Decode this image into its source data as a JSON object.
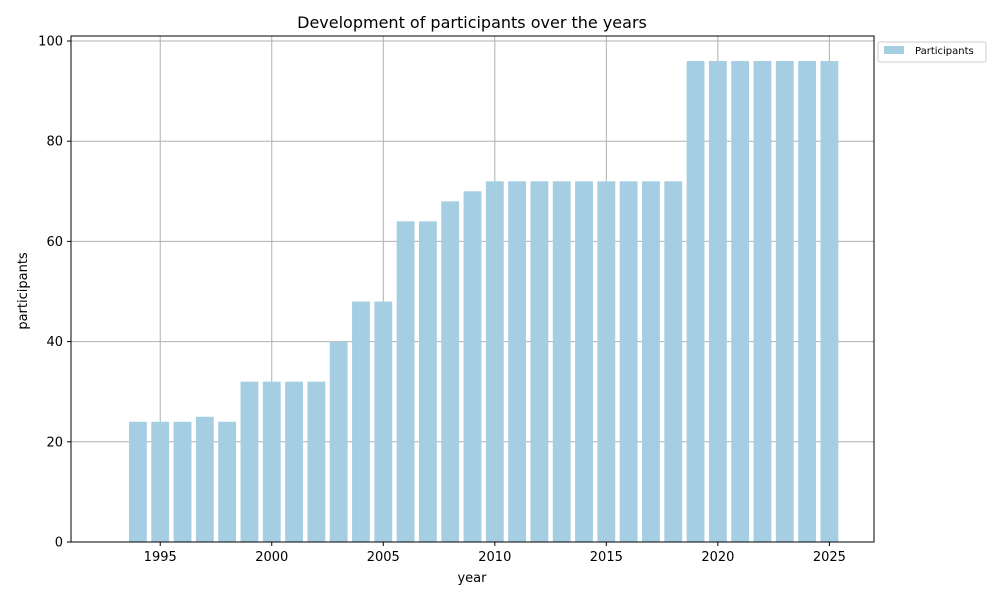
{
  "chart_data": {
    "type": "bar",
    "title": "Development of participants over the years",
    "xlabel": "year",
    "ylabel": "participants",
    "x": [
      1994,
      1995,
      1996,
      1997,
      1998,
      1999,
      2000,
      2001,
      2002,
      2003,
      2004,
      2005,
      2006,
      2007,
      2008,
      2009,
      2010,
      2011,
      2012,
      2013,
      2014,
      2015,
      2016,
      2017,
      2018,
      2019,
      2020,
      2021,
      2022,
      2023,
      2024,
      2025
    ],
    "series": [
      {
        "name": "Participants",
        "color": "#a6cee3",
        "values": [
          24,
          24,
          24,
          25,
          24,
          32,
          32,
          32,
          32,
          40,
          48,
          48,
          64,
          64,
          68,
          70,
          72,
          72,
          72,
          72,
          72,
          72,
          72,
          72,
          72,
          96,
          96,
          96,
          96,
          96,
          96,
          96
        ]
      }
    ],
    "xlim": [
      1991,
      2027
    ],
    "ylim": [
      0,
      101
    ],
    "xticks": [
      1995,
      2000,
      2005,
      2010,
      2015,
      2020,
      2025
    ],
    "yticks": [
      0,
      20,
      40,
      60,
      80,
      100
    ],
    "grid": true,
    "legend_position": "outside-top-right"
  }
}
